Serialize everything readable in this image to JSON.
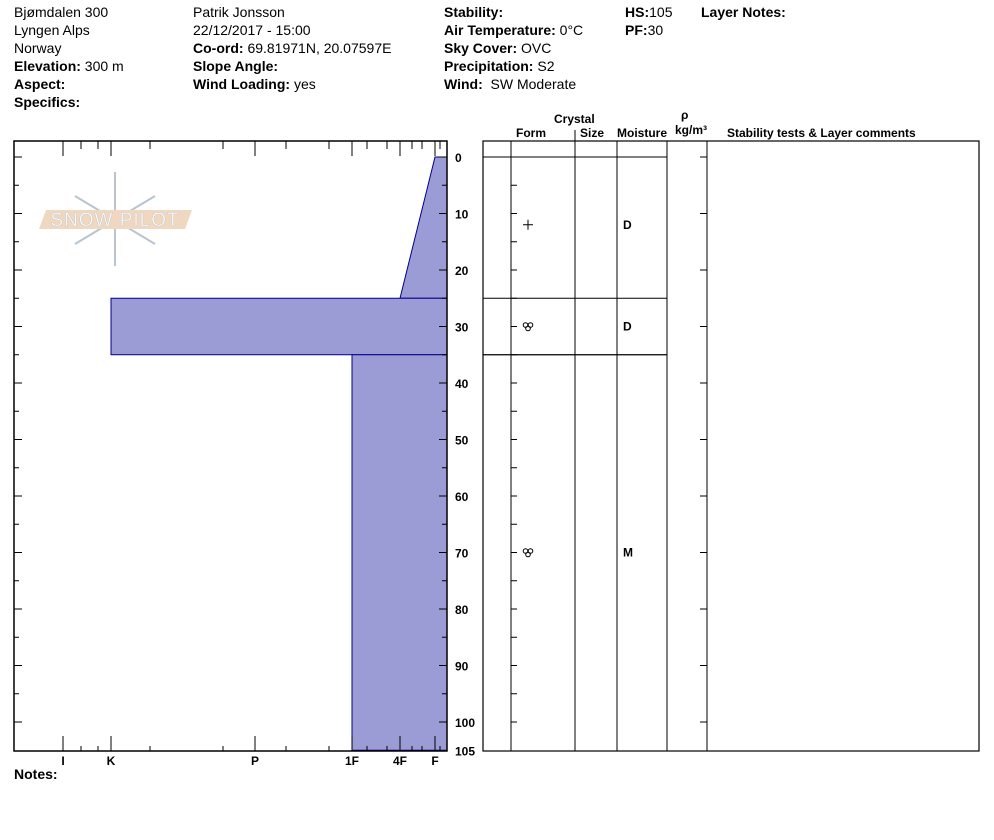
{
  "header": {
    "site": "Bjømdalen 300",
    "range": "Lyngen Alps",
    "country": "Norway",
    "elevation_label": "Elevation:",
    "elevation": "300 m",
    "aspect_label": "Aspect:",
    "aspect": "",
    "specifics_label": "Specifics:",
    "specifics": "",
    "observer": "Patrik Jonsson",
    "datetime": "22/12/2017 - 15:00",
    "coord_label": "Co-ord:",
    "coord": "69.81971N, 20.07597E",
    "slope_label": "Slope Angle:",
    "slope": "",
    "wind_loading_label": "Wind Loading:",
    "wind_loading": "yes",
    "stability_label": "Stability:",
    "stability": "",
    "air_temp_label": "Air Temperature:",
    "air_temp": "0°C",
    "sky_label": "Sky Cover:",
    "sky": "OVC",
    "precip_label": "Precipitation:",
    "precip": "S2",
    "wind_label": "Wind:",
    "wind": "SW Moderate",
    "hs_label": "HS:",
    "hs": "105",
    "pf_label": "PF:",
    "pf": "30",
    "layer_notes_label": "Layer Notes:"
  },
  "logo": {
    "text": "SNOW PILOT",
    "accent": "#f0d8c0",
    "flake": "#b8c4d0"
  },
  "notes_label": "Notes:",
  "table_headers": {
    "crystal": "Crystal",
    "form": "Form",
    "size": "Size",
    "moisture": "Moisture",
    "rho": "ρ",
    "density_unit": "kg/m³",
    "comments": "Stability tests & Layer comments"
  },
  "chart_data": {
    "type": "snow-profile",
    "depth_ticks": [
      0,
      10,
      20,
      30,
      40,
      50,
      60,
      70,
      80,
      90,
      100,
      105
    ],
    "depth_range": [
      0,
      105
    ],
    "hardness_labels": [
      "I",
      "K",
      "P",
      "1F",
      "4F",
      "F"
    ],
    "fill_color": "#9b9bd5",
    "stroke_color": "#00008b",
    "layers": [
      {
        "top": 0,
        "bottom": 25,
        "hardness_top": "F",
        "hardness_bottom": "4F",
        "form": "precipitation-particles",
        "moisture": "D"
      },
      {
        "top": 25,
        "bottom": 35,
        "hardness_top": "K",
        "hardness_bottom": "K",
        "form": "melt-forms",
        "moisture": "D"
      },
      {
        "top": 35,
        "bottom": 105,
        "hardness_top": "1F",
        "hardness_bottom": "1F",
        "form": "melt-forms",
        "moisture": "M"
      }
    ]
  }
}
